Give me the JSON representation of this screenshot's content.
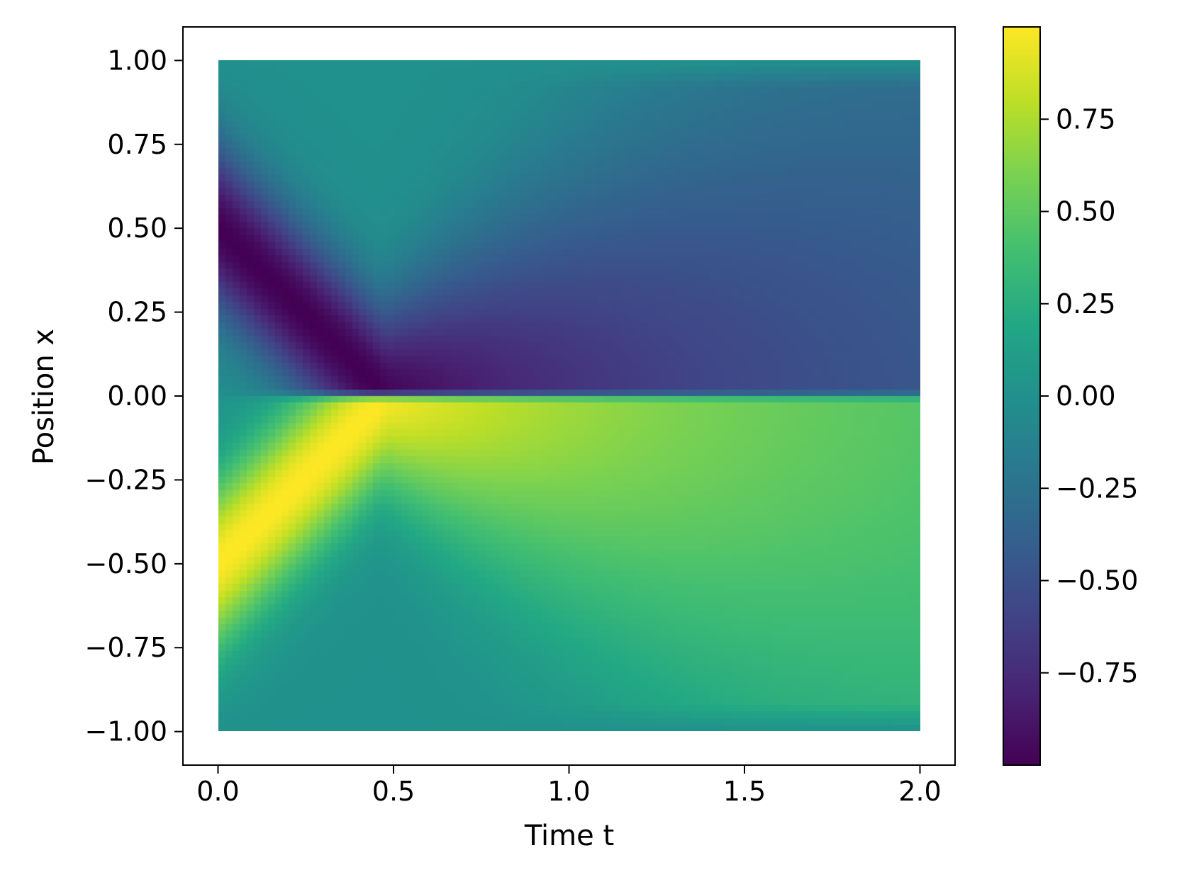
{
  "chart_data": {
    "type": "heatmap",
    "title": "",
    "xlabel": "Time t",
    "ylabel": "Position x",
    "xlim": [
      -0.1,
      2.1
    ],
    "ylim": [
      -1.1,
      1.1
    ],
    "x_range": [
      0.0,
      2.0
    ],
    "y_range": [
      -1.0,
      1.0
    ],
    "xticks": [
      0.0,
      0.5,
      1.0,
      1.5,
      2.0
    ],
    "xtick_labels": [
      "0.0",
      "0.5",
      "1.0",
      "1.5",
      "2.0"
    ],
    "yticks": [
      1.0,
      0.75,
      0.5,
      0.25,
      0.0,
      -0.25,
      -0.5,
      -0.75,
      -1.0
    ],
    "ytick_labels": [
      "1.00",
      "0.75",
      "0.50",
      "0.25",
      "0.00",
      "−0.25",
      "−0.50",
      "−0.75",
      "−1.00"
    ],
    "colormap": "viridis",
    "colorbar": {
      "vmin": -1.0,
      "vmax": 1.0,
      "ticks": [
        0.75,
        0.5,
        0.25,
        0.0,
        -0.25,
        -0.5,
        -0.75
      ],
      "tick_labels": [
        "0.75",
        "0.50",
        "0.25",
        "0.00",
        "−0.25",
        "−0.50",
        "−0.75"
      ]
    },
    "grid": false,
    "description_values": {
      "x_samples": [
        0.0,
        0.25,
        0.5,
        1.0,
        1.5,
        2.0
      ],
      "upper_min_ridge": [
        {
          "t": 0.0,
          "x": 0.5,
          "u": -1.0
        },
        {
          "t": 0.25,
          "x": 0.25,
          "u": -1.0
        },
        {
          "t": 0.5,
          "x": 0.02,
          "u": -0.95
        },
        {
          "t": 1.0,
          "x": 0.1,
          "u": -0.6
        },
        {
          "t": 2.0,
          "x": 0.1,
          "u": -0.45
        }
      ],
      "lower_max_ridge": [
        {
          "t": 0.0,
          "x": -0.5,
          "u": 1.0
        },
        {
          "t": 0.25,
          "x": -0.25,
          "u": 1.0
        },
        {
          "t": 0.5,
          "x": -0.02,
          "u": 0.95
        },
        {
          "t": 1.0,
          "x": -0.1,
          "u": 0.6
        },
        {
          "t": 2.0,
          "x": -0.1,
          "u": 0.45
        }
      ],
      "boundary_value": 0.0
    }
  },
  "colors": {
    "axes": "#000000",
    "background": "#ffffff"
  }
}
